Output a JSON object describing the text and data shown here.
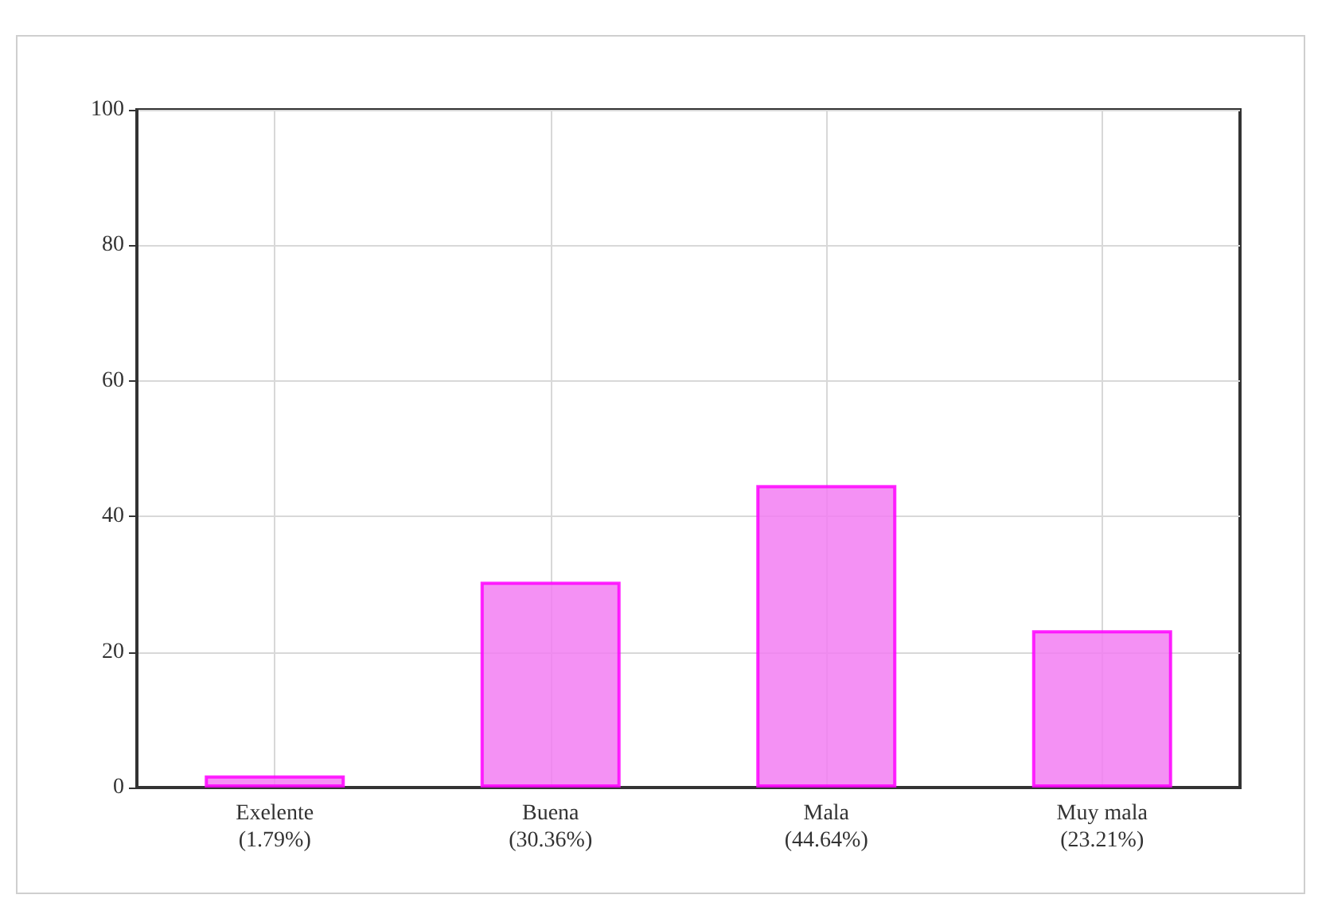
{
  "chart_data": {
    "type": "bar",
    "categories": [
      "Exelente\n(1.79%)",
      "Buena\n(30.36%)",
      "Mala\n(44.64%)",
      "Muy mala\n(23.21%)"
    ],
    "values": [
      1.79,
      30.36,
      44.64,
      23.21
    ],
    "color": "#f27ef2",
    "ylim": [
      0,
      100
    ],
    "yticks": [
      0,
      20,
      40,
      60,
      80,
      100
    ],
    "grid": true
  }
}
